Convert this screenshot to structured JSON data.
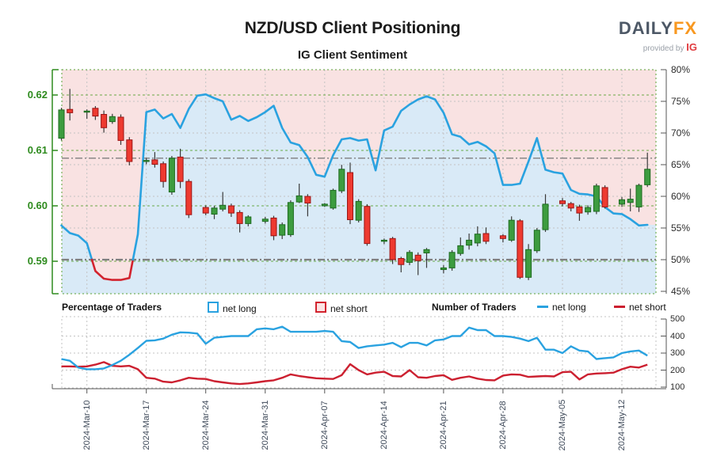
{
  "header": {
    "title": "NZD/USD Client Positioning",
    "subtitle": "IG Client Sentiment"
  },
  "logo": {
    "daily": "DAILY",
    "fx": "FX",
    "provided_by": "provided by",
    "ig": "IG"
  },
  "legend": {
    "percentage_header": "Percentage of Traders",
    "pct_net_long": "net long",
    "pct_net_short": "net short",
    "number_header": "Number of Traders",
    "num_net_long": "net long",
    "num_net_short": "net short"
  },
  "colors": {
    "sentiment_blue": "#2aa2e0",
    "sentiment_red": "#d2232e",
    "area_blue": "#d9eaf7",
    "area_pink": "#f9e2e2",
    "candle_green": "#3d9c3f",
    "candle_green_border": "#1d6b1f",
    "candle_red": "#ee3a30",
    "candle_red_border": "#9c1414",
    "wick": "#3a3a3a",
    "grid_green": "#5ba237",
    "grid_gray": "#c3c3c3",
    "axis_green": "#2e8b1e",
    "axis_gray": "#555555",
    "ref_line": "#7f7f7f",
    "traders_long": "#2aa2e0",
    "traders_short": "#cc2030"
  },
  "chart_data": {
    "type": "candlestick+line",
    "title": "NZD/USD Client Positioning",
    "subtitle": "IG Client Sentiment",
    "price_axis": {
      "side": "left",
      "labels": [
        "0.62",
        "0.61",
        "0.60",
        "0.59"
      ],
      "values": [
        0.62,
        0.61,
        0.6,
        0.59
      ],
      "range": [
        0.5843,
        0.6246
      ]
    },
    "sentiment_axis": {
      "side": "right",
      "labels": [
        "80%",
        "75%",
        "70%",
        "65%",
        "60%",
        "55%",
        "50%",
        "45%"
      ],
      "values": [
        80,
        75,
        70,
        65,
        60,
        55,
        50,
        45
      ],
      "range": [
        45,
        80
      ]
    },
    "traders_axis": {
      "side": "right",
      "labels": [
        "500",
        "400",
        "300",
        "200",
        "100"
      ],
      "values": [
        500,
        400,
        300,
        200,
        100
      ],
      "range": [
        100,
        500
      ]
    },
    "x_ticks": {
      "labels": [
        "2024-Mar-10",
        "2024-Mar-17",
        "2024-Mar-24",
        "2024-Mar-31",
        "2024-Apr-07",
        "2024-Apr-14",
        "2024-Apr-21",
        "2024-Apr-28",
        "2024-May-05",
        "2024-May-12"
      ],
      "t": [
        3,
        10,
        17,
        24,
        31,
        38,
        45,
        52,
        59,
        66
      ]
    },
    "reference_lines": {
      "price_current": 0.6086,
      "sentiment_mid_pct": 50
    },
    "start_date": "2024-Mar-07",
    "candles_format": [
      "t",
      "open",
      "high",
      "low",
      "close"
    ],
    "candles": [
      [
        0,
        0.6122,
        0.6177,
        0.6118,
        0.6173
      ],
      [
        1,
        0.6174,
        0.6211,
        0.6154,
        0.6168
      ],
      [
        3,
        0.617,
        0.6174,
        0.6157,
        0.6171
      ],
      [
        4,
        0.6176,
        0.618,
        0.6155,
        0.6162
      ],
      [
        5,
        0.6165,
        0.6172,
        0.6132,
        0.6141
      ],
      [
        6,
        0.6152,
        0.6166,
        0.6148,
        0.6161
      ],
      [
        7,
        0.616,
        0.6165,
        0.611,
        0.6118
      ],
      [
        8,
        0.6119,
        0.6124,
        0.6073,
        0.608
      ],
      [
        10,
        0.6081,
        0.6086,
        0.6075,
        0.6082
      ],
      [
        11,
        0.6083,
        0.6097,
        0.6069,
        0.6075
      ],
      [
        12,
        0.6076,
        0.608,
        0.6033,
        0.6044
      ],
      [
        13,
        0.6025,
        0.609,
        0.602,
        0.6086
      ],
      [
        14,
        0.6088,
        0.6103,
        0.6032,
        0.6044
      ],
      [
        15,
        0.6044,
        0.6048,
        0.5978,
        0.5984
      ],
      [
        17,
        0.5997,
        0.6001,
        0.5983,
        0.5987
      ],
      [
        18,
        0.5985,
        0.6,
        0.5976,
        0.5996
      ],
      [
        19,
        0.5994,
        0.6025,
        0.599,
        0.6001
      ],
      [
        20,
        0.6,
        0.6004,
        0.598,
        0.5987
      ],
      [
        21,
        0.5988,
        0.5992,
        0.5952,
        0.5968
      ],
      [
        22,
        0.5968,
        0.5983,
        0.5963,
        0.598
      ],
      [
        24,
        0.5972,
        0.598,
        0.5968,
        0.5976
      ],
      [
        25,
        0.5978,
        0.5982,
        0.5938,
        0.5946
      ],
      [
        26,
        0.5947,
        0.597,
        0.594,
        0.5966
      ],
      [
        27,
        0.5948,
        0.601,
        0.5944,
        0.6006
      ],
      [
        28,
        0.6007,
        0.604,
        0.6005,
        0.6018
      ],
      [
        29,
        0.6017,
        0.6021,
        0.5981,
        0.6005
      ],
      [
        31,
        0.6,
        0.6005,
        0.5998,
        0.6003
      ],
      [
        32,
        0.5996,
        0.6031,
        0.5993,
        0.6028
      ],
      [
        33,
        0.6027,
        0.6074,
        0.6023,
        0.6066
      ],
      [
        34,
        0.606,
        0.6078,
        0.5967,
        0.5975
      ],
      [
        35,
        0.5974,
        0.6012,
        0.597,
        0.6008
      ],
      [
        36,
        0.5999,
        0.6003,
        0.5928,
        0.5932
      ],
      [
        38,
        0.5936,
        0.5941,
        0.5931,
        0.5938
      ],
      [
        39,
        0.5941,
        0.5944,
        0.5895,
        0.5903
      ],
      [
        40,
        0.5905,
        0.5908,
        0.588,
        0.5894
      ],
      [
        41,
        0.5898,
        0.592,
        0.5893,
        0.5916
      ],
      [
        42,
        0.5911,
        0.5916,
        0.5875,
        0.5901
      ],
      [
        43,
        0.5915,
        0.5924,
        0.5888,
        0.5921
      ],
      [
        45,
        0.5885,
        0.5893,
        0.5878,
        0.5888
      ],
      [
        46,
        0.5888,
        0.592,
        0.5883,
        0.5916
      ],
      [
        47,
        0.5914,
        0.5943,
        0.591,
        0.5928
      ],
      [
        48,
        0.5929,
        0.595,
        0.5921,
        0.5938
      ],
      [
        49,
        0.5933,
        0.5963,
        0.5927,
        0.5949
      ],
      [
        50,
        0.595,
        0.5961,
        0.5931,
        0.5936
      ],
      [
        52,
        0.5946,
        0.5949,
        0.5934,
        0.5941
      ],
      [
        53,
        0.5938,
        0.5981,
        0.5935,
        0.5974
      ],
      [
        54,
        0.5973,
        0.5976,
        0.5868,
        0.5871
      ],
      [
        55,
        0.5871,
        0.5931,
        0.5866,
        0.5921
      ],
      [
        56,
        0.5919,
        0.596,
        0.5915,
        0.5956
      ],
      [
        57,
        0.5957,
        0.6021,
        0.5953,
        0.6003
      ],
      [
        59,
        0.6009,
        0.6014,
        0.5999,
        0.6004
      ],
      [
        60,
        0.6004,
        0.6007,
        0.599,
        0.5996
      ],
      [
        61,
        0.5998,
        0.6002,
        0.5973,
        0.5987
      ],
      [
        62,
        0.5989,
        0.6001,
        0.5984,
        0.5997
      ],
      [
        63,
        0.599,
        0.604,
        0.5985,
        0.6036
      ],
      [
        64,
        0.6033,
        0.6037,
        0.5995,
        0.5998
      ],
      [
        66,
        0.6003,
        0.6016,
        0.5998,
        0.6011
      ],
      [
        67,
        0.6006,
        0.6031,
        0.599,
        0.6012
      ],
      [
        68,
        0.5998,
        0.604,
        0.5989,
        0.6037
      ],
      [
        69,
        0.6038,
        0.6096,
        0.6034,
        0.6066
      ]
    ],
    "sentiment_pct_daily": [
      55.4,
      54.2,
      53.8,
      52.6,
      48.2,
      47,
      46.8,
      46.8,
      47.1,
      54,
      73.3,
      73.7,
      72.3,
      73,
      70.8,
      73.8,
      75.9,
      76.1,
      75.5,
      75,
      72.1,
      72.7,
      71.9,
      72.5,
      73.3,
      74.3,
      70.8,
      68.5,
      68.1,
      66.2,
      63.4,
      63.1,
      66.5,
      69,
      69.2,
      68.8,
      69,
      64.1,
      70.4,
      71,
      73.5,
      74.5,
      75.3,
      75.8,
      75.3,
      73.2,
      69.8,
      69.4,
      68.2,
      68.6,
      67.9,
      66.8,
      61.8,
      61.8,
      62,
      65.5,
      69.2,
      64.2,
      63.8,
      63.6,
      61,
      60.4,
      60.3,
      60,
      58.3,
      57.3,
      57.2,
      56.4,
      55.4,
      55.5
    ],
    "net_long_traders_daily": [
      265,
      255,
      215,
      205,
      205,
      210,
      230,
      255,
      290,
      330,
      372,
      375,
      385,
      408,
      422,
      420,
      415,
      355,
      390,
      395,
      400,
      400,
      400,
      440,
      445,
      440,
      455,
      425,
      425,
      425,
      425,
      430,
      425,
      370,
      365,
      330,
      340,
      345,
      350,
      360,
      335,
      360,
      360,
      345,
      375,
      380,
      400,
      400,
      450,
      435,
      435,
      400,
      400,
      395,
      385,
      370,
      390,
      320,
      320,
      300,
      340,
      315,
      310,
      265,
      270,
      275,
      300,
      310,
      315,
      285
    ],
    "net_short_traders_daily": [
      222,
      222,
      220,
      222,
      232,
      247,
      225,
      222,
      225,
      205,
      155,
      150,
      132,
      128,
      140,
      155,
      150,
      148,
      135,
      128,
      122,
      118,
      122,
      128,
      135,
      140,
      155,
      175,
      165,
      158,
      152,
      150,
      148,
      170,
      235,
      200,
      175,
      185,
      190,
      165,
      163,
      200,
      158,
      155,
      165,
      170,
      143,
      155,
      163,
      150,
      142,
      140,
      168,
      175,
      173,
      160,
      163,
      165,
      163,
      188,
      190,
      145,
      175,
      180,
      182,
      185,
      205,
      220,
      215,
      232
    ]
  }
}
